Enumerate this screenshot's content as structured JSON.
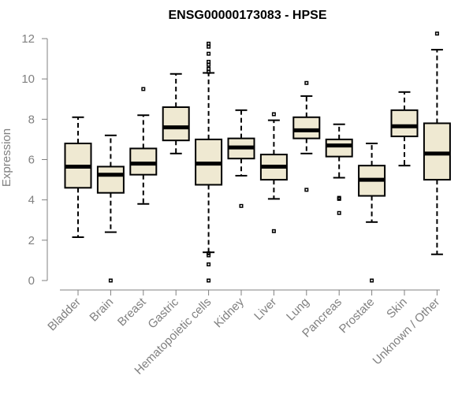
{
  "chart_data": {
    "type": "boxplot",
    "title": "ENSG00000173083 - HPSE",
    "xlabel": "",
    "ylabel": "Expression",
    "ylim": [
      0,
      12
    ],
    "yticks": [
      0,
      2,
      4,
      6,
      8,
      10,
      12
    ],
    "box_fill": "#efe9d2",
    "box_stroke": "#000000",
    "median_color": "#000000",
    "axis_color": "#808080",
    "categories": [
      "Bladder",
      "Brain",
      "Breast",
      "Gastric",
      "Hematopoietic cells",
      "Kidney",
      "Liver",
      "Lung",
      "Pancreas",
      "Prostate",
      "Skin",
      "Unknown / Other"
    ],
    "boxes": [
      {
        "category": "Bladder",
        "whisker_low": 2.15,
        "q1": 4.6,
        "median": 5.65,
        "q3": 6.8,
        "whisker_high": 8.1,
        "outliers": []
      },
      {
        "category": "Brain",
        "whisker_low": 2.4,
        "q1": 4.35,
        "median": 5.25,
        "q3": 5.65,
        "whisker_high": 7.2,
        "outliers": [
          0.0
        ]
      },
      {
        "category": "Breast",
        "whisker_low": 3.8,
        "q1": 5.25,
        "median": 5.8,
        "q3": 6.55,
        "whisker_high": 8.2,
        "outliers": [
          9.5
        ]
      },
      {
        "category": "Gastric",
        "whisker_low": 6.3,
        "q1": 6.95,
        "median": 7.6,
        "q3": 8.6,
        "whisker_high": 10.25,
        "outliers": []
      },
      {
        "category": "Hematopoietic cells",
        "whisker_low": 1.4,
        "q1": 4.75,
        "median": 5.8,
        "q3": 7.0,
        "whisker_high": 10.3,
        "outliers": [
          0.0,
          0.8,
          1.25,
          1.35,
          10.35,
          10.5,
          10.7,
          10.85,
          11.25,
          11.6,
          11.75
        ]
      },
      {
        "category": "Kidney",
        "whisker_low": 5.2,
        "q1": 6.05,
        "median": 6.6,
        "q3": 7.05,
        "whisker_high": 8.45,
        "outliers": [
          3.7
        ]
      },
      {
        "category": "Liver",
        "whisker_low": 4.05,
        "q1": 5.0,
        "median": 5.65,
        "q3": 6.25,
        "whisker_high": 7.95,
        "outliers": [
          2.45,
          8.25
        ]
      },
      {
        "category": "Lung",
        "whisker_low": 6.3,
        "q1": 7.05,
        "median": 7.45,
        "q3": 8.1,
        "whisker_high": 9.15,
        "outliers": [
          4.5,
          9.8
        ]
      },
      {
        "category": "Pancreas",
        "whisker_low": 5.1,
        "q1": 6.15,
        "median": 6.7,
        "q3": 7.0,
        "whisker_high": 7.75,
        "outliers": [
          3.35,
          4.05,
          4.1
        ]
      },
      {
        "category": "Prostate",
        "whisker_low": 2.9,
        "q1": 4.2,
        "median": 5.0,
        "q3": 5.7,
        "whisker_high": 6.8,
        "outliers": [
          0.0
        ]
      },
      {
        "category": "Skin",
        "whisker_low": 5.7,
        "q1": 7.15,
        "median": 7.65,
        "q3": 8.45,
        "whisker_high": 9.35,
        "outliers": []
      },
      {
        "category": "Unknown / Other",
        "whisker_low": 1.3,
        "q1": 5.0,
        "median": 6.3,
        "q3": 7.8,
        "whisker_high": 11.45,
        "outliers": [
          12.25
        ]
      }
    ]
  }
}
